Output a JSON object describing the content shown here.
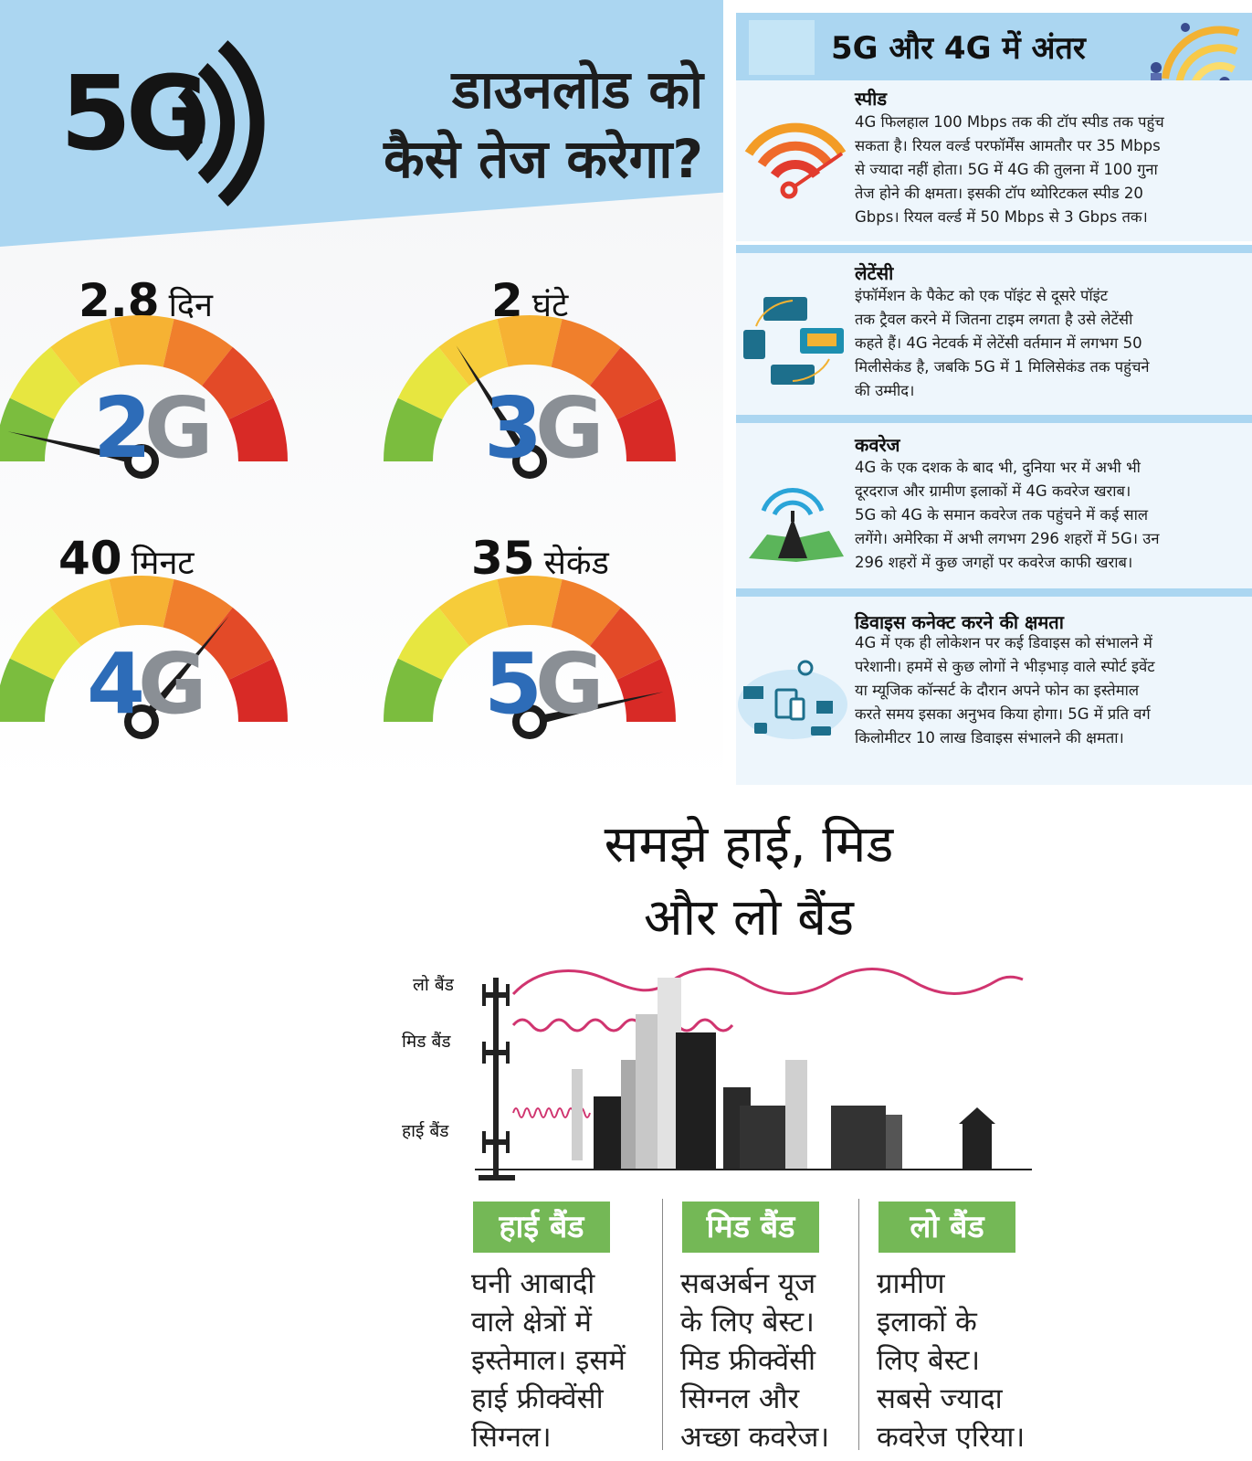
{
  "speed_infographic": {
    "logo_text": "5G",
    "title_line1": "डाउनलोड को",
    "title_line2": "कैसे तेज करेगा?",
    "gauges": [
      {
        "network": "2G",
        "time_value": "2.8",
        "time_unit": "दिन",
        "needle_level": 0.07
      },
      {
        "network": "3G",
        "time_value": "2",
        "time_unit": "घंटे",
        "needle_level": 0.32
      },
      {
        "network": "4G",
        "time_value": "40",
        "time_unit": "मिनट",
        "needle_level": 0.72
      },
      {
        "network": "5G",
        "time_value": "35",
        "time_unit": "सेकंड",
        "needle_level": 0.93
      }
    ],
    "colors": {
      "header": "#abd6f1",
      "g_blue": "#2d6cb8",
      "g_grey": "#8a8f95"
    }
  },
  "comparison": {
    "title": "5G और 4G में अंतर",
    "sections": [
      {
        "title": "स्पीड",
        "icon": "wifi-signal-icon",
        "lines": [
          "4G फिलहाल 100 Mbps तक की टॉप स्पीड तक पहुंच",
          "सकता है। रियल वर्ल्ड परफॉर्मेंस आमतौर पर 35 Mbps",
          "से ज्यादा नहीं होता। 5G में 4G की तुलना में 100 गुना",
          "तेज होने की क्षमता। इसकी टॉप थ्योरिटकल स्पीड 20",
          "Gbps। रियल वर्ल्ड में 50 Mbps से 3 Gbps तक।"
        ]
      },
      {
        "title": "लेटेंसी",
        "icon": "data-transfer-icon",
        "lines": [
          "इंफॉर्मेशन के पैकेट को एक पॉइंट से दूसरे पॉइंट",
          "तक ट्रैवल करने में जितना टाइम लगता है उसे लेटेंसी",
          "कहते हैं। 4G नेटवर्क में लेटेंसी वर्तमान में लगभग 50",
          "मिलीसेकंड है, जबकि 5G में 1 मिलिसेकंड तक पहुंचने",
          "की उम्मीद।"
        ]
      },
      {
        "title": "कवरेज",
        "icon": "tower-map-icon",
        "lines": [
          "4G के एक दशक के बाद भी, दुनिया भर में अभी भी",
          "दूरदराज और ग्रामीण इलाकों में 4G कवरेज खराब।",
          "5G को 4G के समान कवरेज तक पहुंचने में कई साल",
          "लगेंगे। अमेरिका में अभी लगभग 296 शहरों में 5G। उन",
          "296 शहरों में कुछ जगहों पर कवरेज काफी खराब।"
        ]
      },
      {
        "title": "डिवाइस कनेक्ट करने की क्षमता",
        "icon": "connected-devices-icon",
        "lines": [
          "4G में एक ही लोकेशन पर कई डिवाइस को संभालने में",
          "परेशानी। हममें से कुछ लोगों ने भीड़भाड़ वाले स्पोर्ट इवेंट",
          "या म्यूजिक कॉन्सर्ट के दौरान अपने फोन का इस्तेमाल",
          "करते समय इसका अनुभव किया होगा। 5G में प्रति वर्ग",
          "किलोमीटर 10 लाख डिवाइस संभालने की क्षमता।"
        ]
      }
    ]
  },
  "bands": {
    "title_line1": "समझे हाई, मिड",
    "title_line2": "और लो बैंड",
    "diagram_labels": {
      "low": "लो बैंड",
      "mid": "मिड बैंड",
      "high": "हाई बैंड"
    },
    "columns": [
      {
        "label": "हाई बैंड",
        "lines": [
          "घनी आबादी",
          "वाले क्षेत्रों में",
          "इस्तेमाल। इसमें",
          "हाई फ्रीक्वेंसी",
          "सिग्नल।"
        ]
      },
      {
        "label": "मिड बैंड",
        "lines": [
          "सबअर्बन यूज",
          "के लिए बेस्ट।",
          "मिड फ्रीक्वेंसी",
          "सिग्नल और",
          "अच्छा कवरेज।"
        ]
      },
      {
        "label": "लो बैंड",
        "lines": [
          "ग्रामीण",
          "इलाकों के",
          "लिए बेस्ट।",
          "सबसे ज्यादा",
          "कवरेज एरिया।"
        ]
      }
    ],
    "colors": {
      "green": "#74b856",
      "wave": "#d0346f"
    }
  }
}
